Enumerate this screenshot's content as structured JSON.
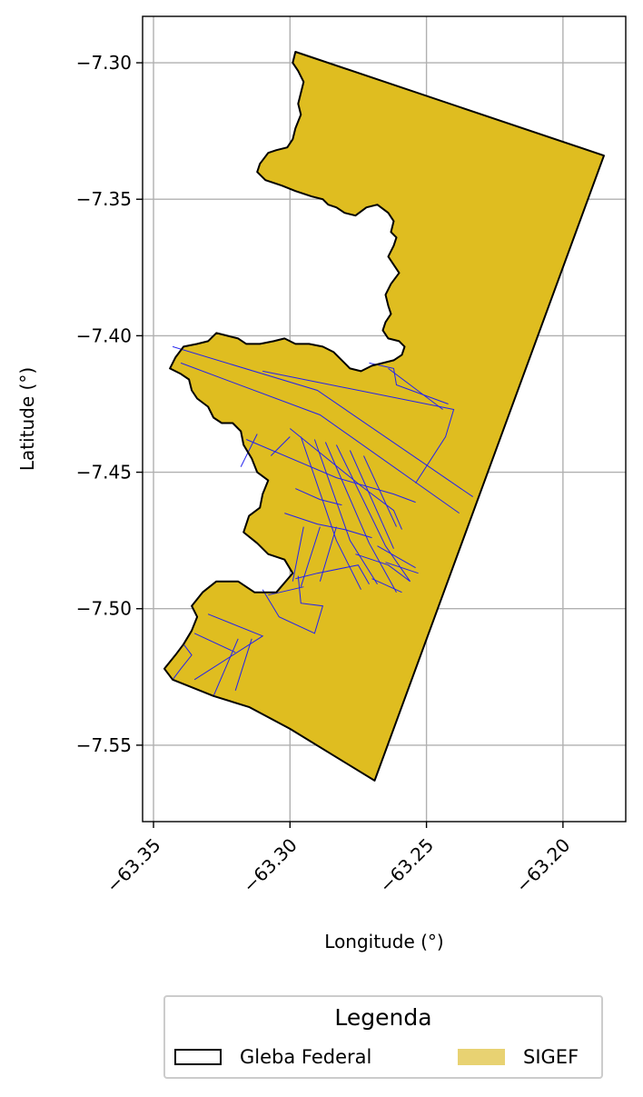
{
  "chart_data": {
    "type": "map",
    "xlabel": "Longitude (°)",
    "ylabel": "Latitude (°)",
    "xlim": [
      -63.354,
      -63.177
    ],
    "ylim": [
      -7.578,
      -7.283
    ],
    "xticks": [
      -63.35,
      -63.3,
      -63.25,
      -63.2
    ],
    "xtick_labels": [
      "−63.35",
      "−63.30",
      "−63.25",
      "−63.20"
    ],
    "yticks": [
      -7.3,
      -7.35,
      -7.4,
      -7.45,
      -7.5,
      -7.55
    ],
    "ytick_labels": [
      "−7.30",
      "−7.35",
      "−7.40",
      "−7.45",
      "−7.50",
      "−7.55"
    ],
    "grid": true,
    "colors": {
      "sigef_fill": "#dfbd20",
      "sigef_edges": "#2222ee",
      "gleba_outline": "#000000",
      "grid": "#b0b0b0",
      "legend_sigef": "#e8d272"
    },
    "layers": [
      {
        "name": "Gleba Federal",
        "style": "outline"
      },
      {
        "name": "SIGEF",
        "style": "fill"
      }
    ],
    "outline": [
      [
        -63.298,
        -7.296
      ],
      [
        -63.185,
        -7.334
      ],
      [
        -63.269,
        -7.563
      ],
      [
        -63.3,
        -7.544
      ],
      [
        -63.315,
        -7.536
      ],
      [
        -63.328,
        -7.532
      ],
      [
        -63.343,
        -7.526
      ],
      [
        -63.346,
        -7.522
      ],
      [
        -63.342,
        -7.517
      ],
      [
        -63.339,
        -7.513
      ],
      [
        -63.336,
        -7.508
      ],
      [
        -63.334,
        -7.503
      ],
      [
        -63.336,
        -7.499
      ],
      [
        -63.332,
        -7.494
      ],
      [
        -63.327,
        -7.49
      ],
      [
        -63.319,
        -7.49
      ],
      [
        -63.313,
        -7.494
      ],
      [
        -63.305,
        -7.494
      ],
      [
        -63.299,
        -7.487
      ],
      [
        -63.302,
        -7.482
      ],
      [
        -63.308,
        -7.48
      ],
      [
        -63.312,
        -7.476
      ],
      [
        -63.317,
        -7.472
      ],
      [
        -63.315,
        -7.466
      ],
      [
        -63.311,
        -7.463
      ],
      [
        -63.31,
        -7.458
      ],
      [
        -63.308,
        -7.453
      ],
      [
        -63.312,
        -7.45
      ],
      [
        -63.314,
        -7.445
      ],
      [
        -63.317,
        -7.44
      ],
      [
        -63.318,
        -7.435
      ],
      [
        -63.321,
        -7.432
      ],
      [
        -63.325,
        -7.432
      ],
      [
        -63.328,
        -7.43
      ],
      [
        -63.33,
        -7.426
      ],
      [
        -63.334,
        -7.423
      ],
      [
        -63.336,
        -7.42
      ],
      [
        -63.337,
        -7.416
      ],
      [
        -63.34,
        -7.414
      ],
      [
        -63.344,
        -7.412
      ],
      [
        -63.342,
        -7.408
      ],
      [
        -63.339,
        -7.404
      ],
      [
        -63.334,
        -7.403
      ],
      [
        -63.33,
        -7.402
      ],
      [
        -63.327,
        -7.399
      ],
      [
        -63.323,
        -7.4
      ],
      [
        -63.319,
        -7.401
      ],
      [
        -63.316,
        -7.403
      ],
      [
        -63.311,
        -7.403
      ],
      [
        -63.306,
        -7.402
      ],
      [
        -63.302,
        -7.401
      ],
      [
        -63.298,
        -7.403
      ],
      [
        -63.293,
        -7.403
      ],
      [
        -63.288,
        -7.404
      ],
      [
        -63.284,
        -7.406
      ],
      [
        -63.281,
        -7.409
      ],
      [
        -63.278,
        -7.412
      ],
      [
        -63.274,
        -7.413
      ],
      [
        -63.27,
        -7.411
      ],
      [
        -63.266,
        -7.41
      ],
      [
        -63.262,
        -7.409
      ],
      [
        -63.259,
        -7.407
      ],
      [
        -63.258,
        -7.404
      ],
      [
        -63.26,
        -7.402
      ],
      [
        -63.264,
        -7.401
      ],
      [
        -63.266,
        -7.398
      ],
      [
        -63.265,
        -7.395
      ],
      [
        -63.263,
        -7.392
      ],
      [
        -63.264,
        -7.389
      ],
      [
        -63.265,
        -7.385
      ],
      [
        -63.263,
        -7.381
      ],
      [
        -63.26,
        -7.377
      ],
      [
        -63.262,
        -7.374
      ],
      [
        -63.264,
        -7.371
      ],
      [
        -63.262,
        -7.367
      ],
      [
        -63.261,
        -7.364
      ],
      [
        -63.263,
        -7.362
      ],
      [
        -63.262,
        -7.358
      ],
      [
        -63.264,
        -7.355
      ],
      [
        -63.268,
        -7.352
      ],
      [
        -63.272,
        -7.353
      ],
      [
        -63.276,
        -7.356
      ],
      [
        -63.28,
        -7.355
      ],
      [
        -63.283,
        -7.353
      ],
      [
        -63.286,
        -7.352
      ],
      [
        -63.288,
        -7.35
      ],
      [
        -63.292,
        -7.349
      ],
      [
        -63.298,
        -7.347
      ],
      [
        -63.303,
        -7.345
      ],
      [
        -63.309,
        -7.343
      ],
      [
        -63.312,
        -7.34
      ],
      [
        -63.311,
        -7.337
      ],
      [
        -63.308,
        -7.333
      ],
      [
        -63.305,
        -7.332
      ],
      [
        -63.301,
        -7.331
      ],
      [
        -63.299,
        -7.328
      ],
      [
        -63.298,
        -7.324
      ],
      [
        -63.296,
        -7.319
      ],
      [
        -63.297,
        -7.315
      ],
      [
        -63.296,
        -7.311
      ],
      [
        -63.295,
        -7.307
      ],
      [
        -63.297,
        -7.303
      ],
      [
        -63.299,
        -7.3
      ]
    ],
    "parcels": [
      [
        [
          -63.343,
          -7.404
        ],
        [
          -63.29,
          -7.42
        ],
        [
          -63.233,
          -7.459
        ]
      ],
      [
        [
          -63.34,
          -7.41
        ],
        [
          -63.289,
          -7.429
        ],
        [
          -63.238,
          -7.465
        ]
      ],
      [
        [
          -63.31,
          -7.413
        ],
        [
          -63.24,
          -7.427
        ],
        [
          -63.243,
          -7.437
        ],
        [
          -63.254,
          -7.454
        ]
      ],
      [
        [
          -63.271,
          -7.41
        ],
        [
          -63.262,
          -7.412
        ],
        [
          -63.261,
          -7.418
        ],
        [
          -63.242,
          -7.425
        ]
      ],
      [
        [
          -63.264,
          -7.412
        ],
        [
          -63.244,
          -7.427
        ]
      ],
      [
        [
          -63.316,
          -7.438
        ],
        [
          -63.283,
          -7.452
        ],
        [
          -63.262,
          -7.458
        ],
        [
          -63.254,
          -7.461
        ]
      ],
      [
        [
          -63.318,
          -7.448
        ],
        [
          -63.312,
          -7.436
        ]
      ],
      [
        [
          -63.307,
          -7.444
        ],
        [
          -63.3,
          -7.437
        ]
      ],
      [
        [
          -63.3,
          -7.434
        ],
        [
          -63.274,
          -7.455
        ],
        [
          -63.262,
          -7.464
        ],
        [
          -63.259,
          -7.471
        ]
      ],
      [
        [
          -63.298,
          -7.456
        ],
        [
          -63.289,
          -7.46
        ],
        [
          -63.281,
          -7.462
        ]
      ],
      [
        [
          -63.296,
          -7.437
        ],
        [
          -63.283,
          -7.475
        ],
        [
          -63.274,
          -7.493
        ]
      ],
      [
        [
          -63.291,
          -7.438
        ],
        [
          -63.278,
          -7.475
        ],
        [
          -63.268,
          -7.491
        ]
      ],
      [
        [
          -63.287,
          -7.439
        ],
        [
          -63.271,
          -7.476
        ],
        [
          -63.261,
          -7.494
        ]
      ],
      [
        [
          -63.283,
          -7.44
        ],
        [
          -63.265,
          -7.477
        ],
        [
          -63.256,
          -7.49
        ]
      ],
      [
        [
          -63.278,
          -7.442
        ],
        [
          -63.262,
          -7.478
        ]
      ],
      [
        [
          -63.273,
          -7.444
        ],
        [
          -63.261,
          -7.47
        ]
      ],
      [
        [
          -63.302,
          -7.465
        ],
        [
          -63.29,
          -7.469
        ],
        [
          -63.28,
          -7.471
        ],
        [
          -63.27,
          -7.474
        ]
      ],
      [
        [
          -63.276,
          -7.48
        ],
        [
          -63.264,
          -7.484
        ],
        [
          -63.256,
          -7.49
        ]
      ],
      [
        [
          -63.27,
          -7.489
        ],
        [
          -63.259,
          -7.494
        ]
      ],
      [
        [
          -63.268,
          -7.477
        ],
        [
          -63.254,
          -7.485
        ]
      ],
      [
        [
          -63.265,
          -7.483
        ],
        [
          -63.253,
          -7.487
        ]
      ],
      [
        [
          -63.295,
          -7.47
        ],
        [
          -63.299,
          -7.49
        ]
      ],
      [
        [
          -63.289,
          -7.47
        ],
        [
          -63.296,
          -7.492
        ]
      ],
      [
        [
          -63.283,
          -7.47
        ],
        [
          -63.289,
          -7.49
        ]
      ],
      [
        [
          -63.298,
          -7.489
        ],
        [
          -63.29,
          -7.487
        ],
        [
          -63.275,
          -7.484
        ],
        [
          -63.271,
          -7.491
        ]
      ],
      [
        [
          -63.297,
          -7.488
        ],
        [
          -63.296,
          -7.498
        ],
        [
          -63.288,
          -7.499
        ],
        [
          -63.291,
          -7.509
        ],
        [
          -63.304,
          -7.503
        ],
        [
          -63.31,
          -7.493
        ]
      ],
      [
        [
          -63.295,
          -7.492
        ],
        [
          -63.308,
          -7.495
        ]
      ],
      [
        [
          -63.339,
          -7.513
        ],
        [
          -63.336,
          -7.517
        ],
        [
          -63.34,
          -7.522
        ],
        [
          -63.343,
          -7.526
        ]
      ],
      [
        [
          -63.335,
          -7.509
        ],
        [
          -63.32,
          -7.516
        ]
      ],
      [
        [
          -63.33,
          -7.502
        ],
        [
          -63.31,
          -7.51
        ],
        [
          -63.335,
          -7.526
        ]
      ],
      [
        [
          -63.319,
          -7.511
        ],
        [
          -63.328,
          -7.532
        ]
      ],
      [
        [
          -63.314,
          -7.511
        ],
        [
          -63.32,
          -7.53
        ]
      ]
    ]
  },
  "legend": {
    "title": "Legenda",
    "items": [
      {
        "label": "Gleba Federal"
      },
      {
        "label": "SIGEF"
      }
    ]
  }
}
